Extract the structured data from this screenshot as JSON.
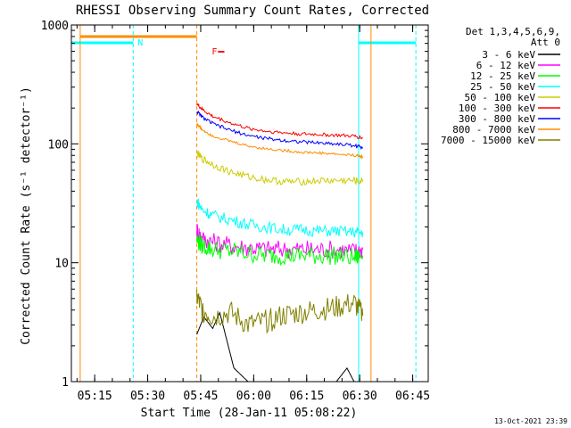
{
  "chart_data": {
    "type": "line",
    "title": "RHESSI Observing Summary Count Rates, Corrected",
    "xlabel": "Start Time (28-Jan-11 05:08:22)",
    "ylabel": "Corrected Count Rate (s⁻¹ detector⁻¹)",
    "yscale": "log",
    "ylim": [
      1,
      1000
    ],
    "xlim_minutes": [
      0,
      101
    ],
    "x_tick_labels": [
      "05:15",
      "05:30",
      "05:45",
      "06:00",
      "06:15",
      "06:30",
      "06:45"
    ],
    "x_tick_minutes": [
      6.6,
      21.6,
      36.6,
      51.6,
      66.6,
      81.6,
      96.6
    ],
    "y_tick_labels": [
      "1",
      "10",
      "100",
      "1000"
    ],
    "y_tick_values": [
      1,
      10,
      100,
      1000
    ],
    "legend_header": [
      "Det 1,3,4,5,6,9,",
      "Att 0"
    ],
    "legend_position": "top-right",
    "series": [
      {
        "name": "3 - 6 keV",
        "color": "#000000",
        "x": [
          35.5,
          37.5,
          40,
          42,
          46,
          50,
          55,
          60,
          65,
          70,
          75,
          78,
          80,
          81.5
        ],
        "y": [
          2.5,
          3.5,
          2.8,
          3.8,
          1.3,
          1.0,
          1.0,
          1.0,
          1.0,
          1.0,
          1.0,
          1.3,
          1.0,
          1.0
        ]
      },
      {
        "name": "6 - 12 keV",
        "color": "#ff00ff",
        "x": [
          35.5,
          37,
          40,
          45,
          50,
          55,
          60,
          65,
          70,
          75,
          80,
          82.5
        ],
        "y": [
          19,
          16,
          15,
          14,
          13.5,
          13,
          13,
          13,
          13,
          13,
          12.5,
          13
        ]
      },
      {
        "name": "12 - 25 keV",
        "color": "#00ff00",
        "x": [
          35.5,
          37,
          40,
          45,
          50,
          55,
          60,
          65,
          70,
          75,
          80,
          82.5
        ],
        "y": [
          15.5,
          14,
          13,
          12.5,
          12,
          11.5,
          11.5,
          11.5,
          11.5,
          11.5,
          11,
          11.5
        ]
      },
      {
        "name": "25 - 50 keV",
        "color": "#00ffff",
        "x": [
          35.5,
          37,
          40,
          45,
          50,
          55,
          60,
          65,
          70,
          75,
          80,
          82.5
        ],
        "y": [
          33,
          28,
          25,
          23,
          21,
          20,
          19,
          19,
          18.5,
          18.5,
          18,
          18
        ]
      },
      {
        "name": "50 - 100 keV",
        "color": "#cccc00",
        "x": [
          35.5,
          37,
          40,
          45,
          50,
          55,
          60,
          65,
          70,
          75,
          80,
          82.5
        ],
        "y": [
          84,
          75,
          67,
          58,
          53,
          50,
          48,
          48,
          49,
          49,
          49,
          48
        ]
      },
      {
        "name": "100 - 300 keV",
        "color": "#ff0000",
        "x": [
          35.5,
          37,
          40,
          45,
          50,
          55,
          60,
          65,
          70,
          75,
          80,
          82.5
        ],
        "y": [
          218,
          195,
          170,
          150,
          135,
          128,
          124,
          121,
          120,
          118,
          116,
          112
        ]
      },
      {
        "name": "300 - 800 keV",
        "color": "#0000ff",
        "x": [
          35.5,
          37,
          40,
          45,
          50,
          55,
          60,
          65,
          70,
          75,
          80,
          82.5
        ],
        "y": [
          188,
          168,
          148,
          130,
          118,
          111,
          107,
          104,
          102,
          100,
          97,
          93
        ]
      },
      {
        "name": "800 - 7000 keV",
        "color": "#ff8c00",
        "x": [
          35.5,
          37,
          40,
          45,
          50,
          55,
          60,
          65,
          70,
          75,
          80,
          82.5
        ],
        "y": [
          148,
          132,
          117,
          105,
          96,
          91,
          88,
          85,
          84,
          82,
          80,
          78
        ]
      },
      {
        "name": "7000 - 15000 keV",
        "color": "#808000",
        "x": [
          35.5,
          37,
          40,
          45,
          50,
          55,
          60,
          65,
          70,
          75,
          80,
          82.5
        ],
        "y": [
          5.2,
          4.0,
          3.5,
          3.8,
          3.0,
          3.2,
          3.6,
          3.8,
          4.0,
          4.2,
          4.6,
          3.6
        ]
      }
    ],
    "eclipse_intervals": [
      {
        "x": [
          0,
          17.5
        ],
        "color": "#00ffff"
      },
      {
        "x": [
          81.3,
          97.5
        ],
        "color": "#00ffff"
      }
    ],
    "attenuator_interval": {
      "x": [
        2.5,
        35.5
      ],
      "color": "#ff8c00"
    },
    "vertical_lines": [
      {
        "x": 2.5,
        "color": "#ff8c00",
        "style": "solid"
      },
      {
        "x": 17.5,
        "color": "#00ffff",
        "style": "dashed"
      },
      {
        "x": 35.5,
        "color": "#ff8c00",
        "style": "dashed"
      },
      {
        "x": 81.3,
        "color": "#00ffff",
        "style": "solid"
      },
      {
        "x": 84.8,
        "color": "#ff8c00",
        "style": "solid"
      },
      {
        "x": 97.5,
        "color": "#00ffff",
        "style": "dashed"
      }
    ],
    "annotations": [
      {
        "text": "N",
        "color": "#00ffff",
        "x": 19.5
      },
      {
        "text": "F",
        "color": "#ff0000",
        "x": 40.5
      }
    ],
    "timestamp": "13-Oct-2021 23:39"
  }
}
